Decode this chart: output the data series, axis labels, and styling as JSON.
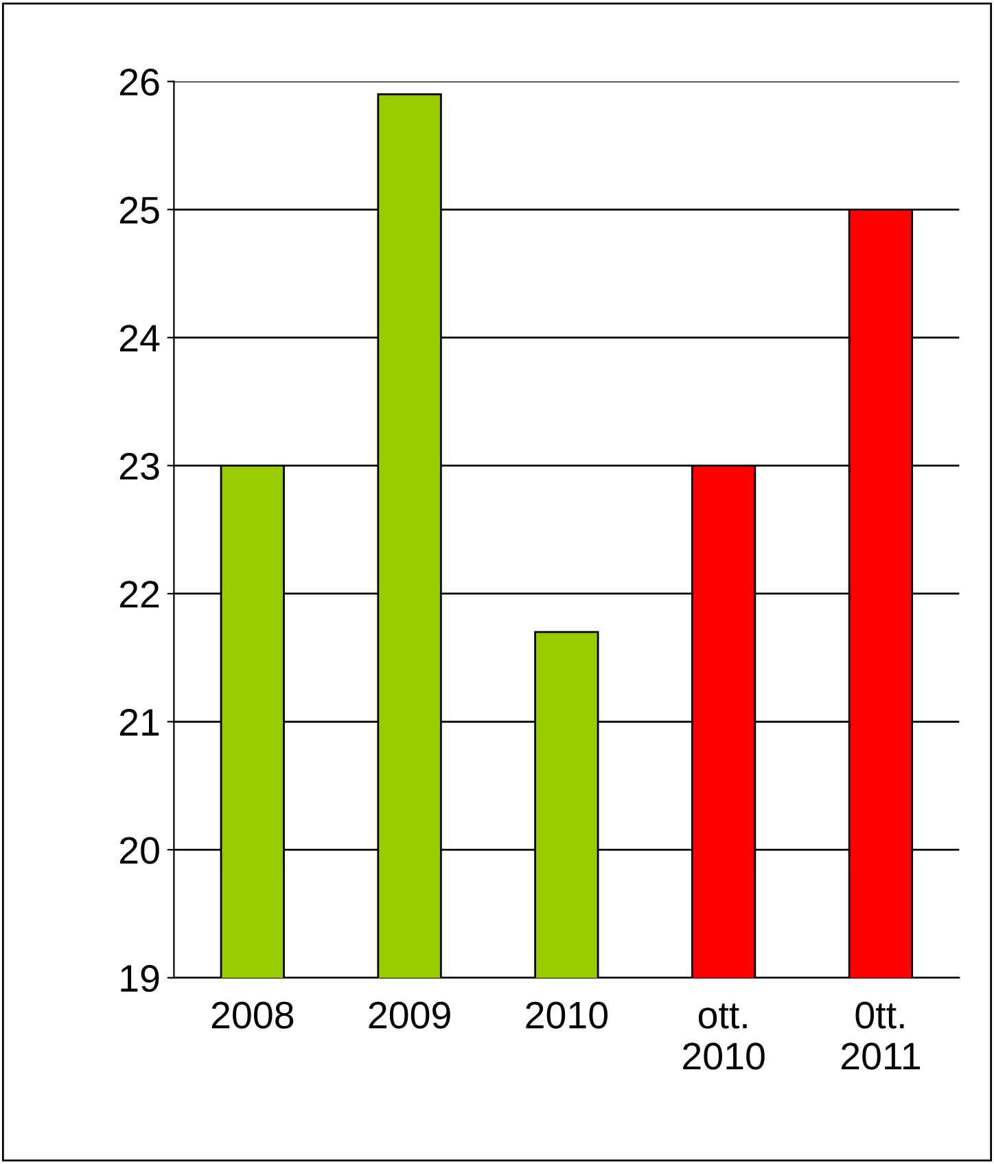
{
  "chart_data": {
    "type": "bar",
    "categories": [
      "2008",
      "2009",
      "2010",
      "ott.\n2010",
      "0tt.\n2011"
    ],
    "values": [
      23,
      25.9,
      21.7,
      23,
      25
    ],
    "colors": [
      "#99cc00",
      "#99cc00",
      "#99cc00",
      "#ff0000",
      "#ff0000"
    ],
    "ylim": [
      19,
      26
    ],
    "yticks": [
      19,
      20,
      21,
      22,
      23,
      24,
      25,
      26
    ],
    "grid": "y"
  }
}
